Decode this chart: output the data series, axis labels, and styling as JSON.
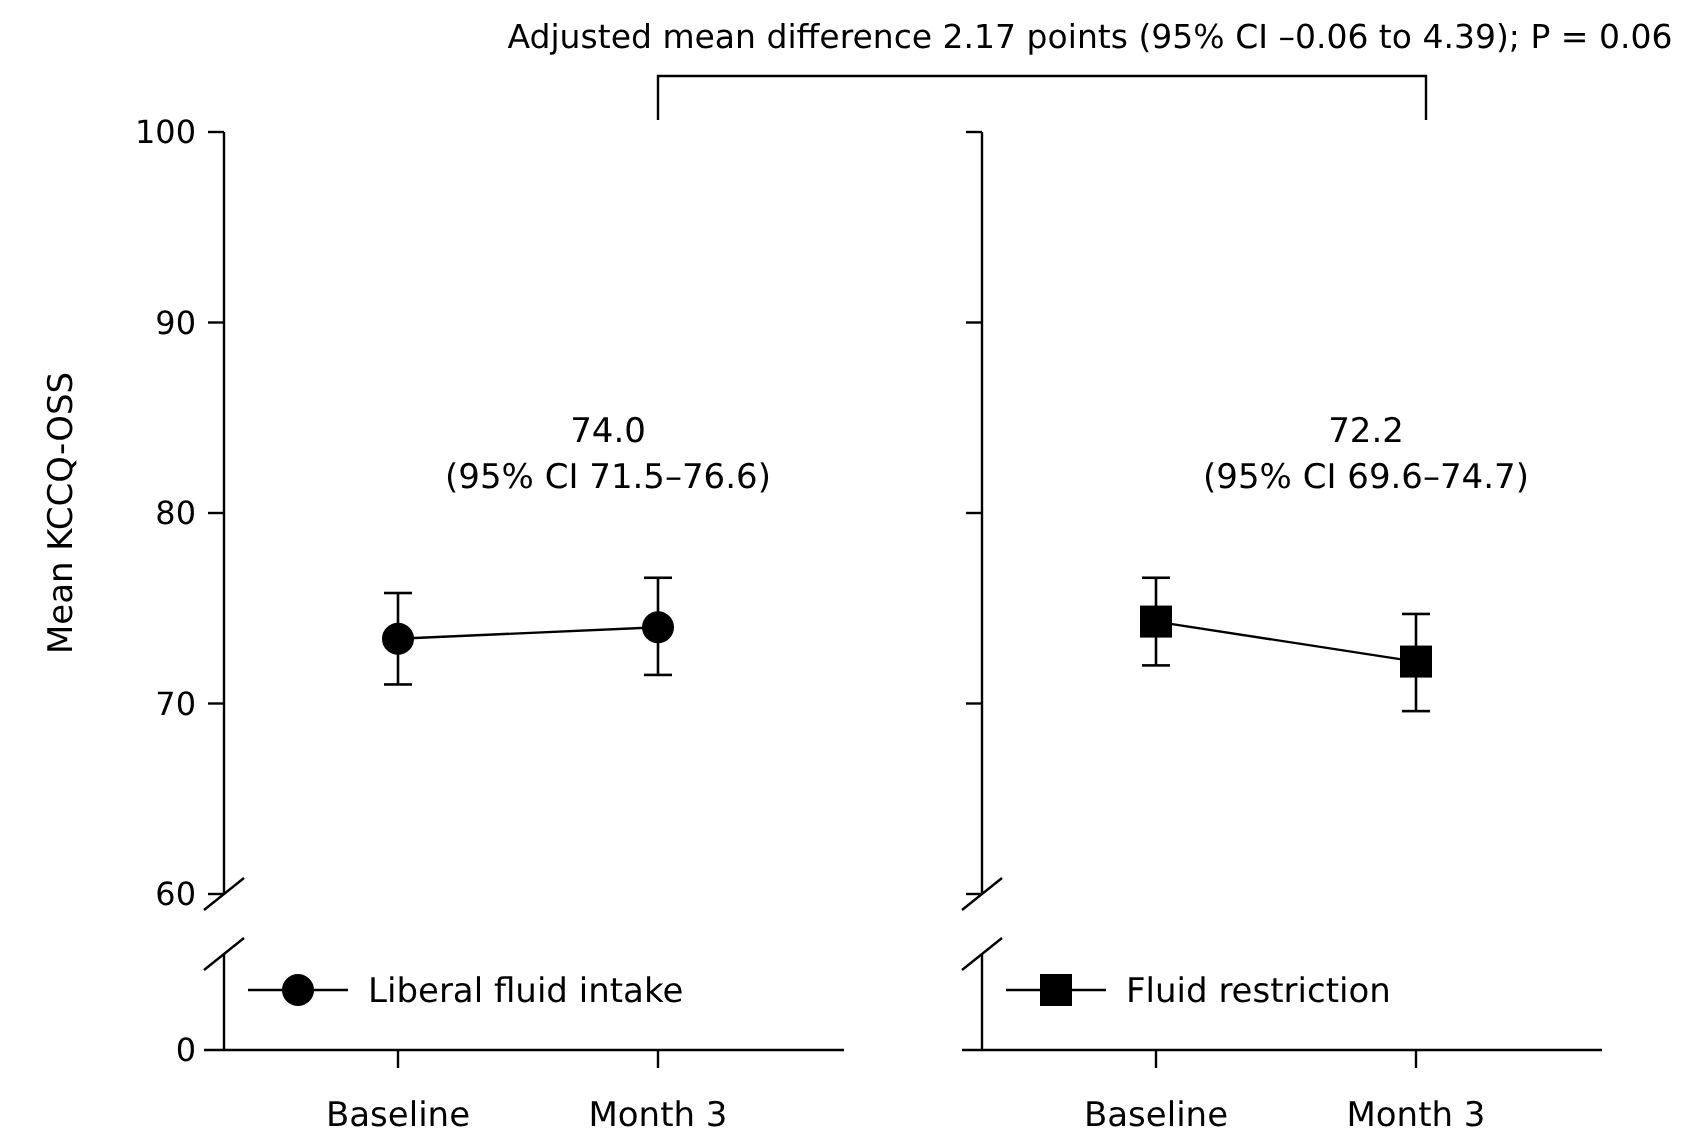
{
  "chart_data": [
    {
      "type": "line",
      "ylabel": "Mean KCCQ-OSS",
      "annotations": [
        "Adjusted mean difference 2.17 points (95% CI –0.06 to 4.39); P = 0.06",
        "0",
        "74.0\n(95% CI 71.5–76.6)"
      ],
      "categories": [
        "Baseline",
        "Month 3"
      ],
      "series": [
        {
          "name": "Liberal fluid intake",
          "color": "#000000",
          "values": [
            73.4,
            74.0
          ],
          "errors": [
            [
              71.0,
              75.8
            ],
            [
              71.5,
              76.6
            ]
          ]
        }
      ],
      "ylim": [
        60,
        100
      ],
      "yticks": [
        60,
        70,
        80,
        90,
        100
      ],
      "marker": "circle",
      "legend": "bottom left"
    },
    {
      "type": "line",
      "annotations": [
        "72.2\n(95% CI 69.6–74.7)"
      ],
      "categories": [
        "Baseline",
        "Month 3"
      ],
      "series": [
        {
          "name": "Fluid restriction",
          "color": "#000000",
          "values": [
            74.3,
            72.2
          ],
          "errors": [
            [
              72.0,
              76.6
            ],
            [
              69.6,
              74.7
            ]
          ]
        }
      ],
      "ylim": [
        60,
        100
      ],
      "yticks": [
        60,
        70,
        80,
        90,
        100
      ],
      "tick_labels": "x",
      "marker": "square",
      "legend": "bottom left"
    }
  ]
}
